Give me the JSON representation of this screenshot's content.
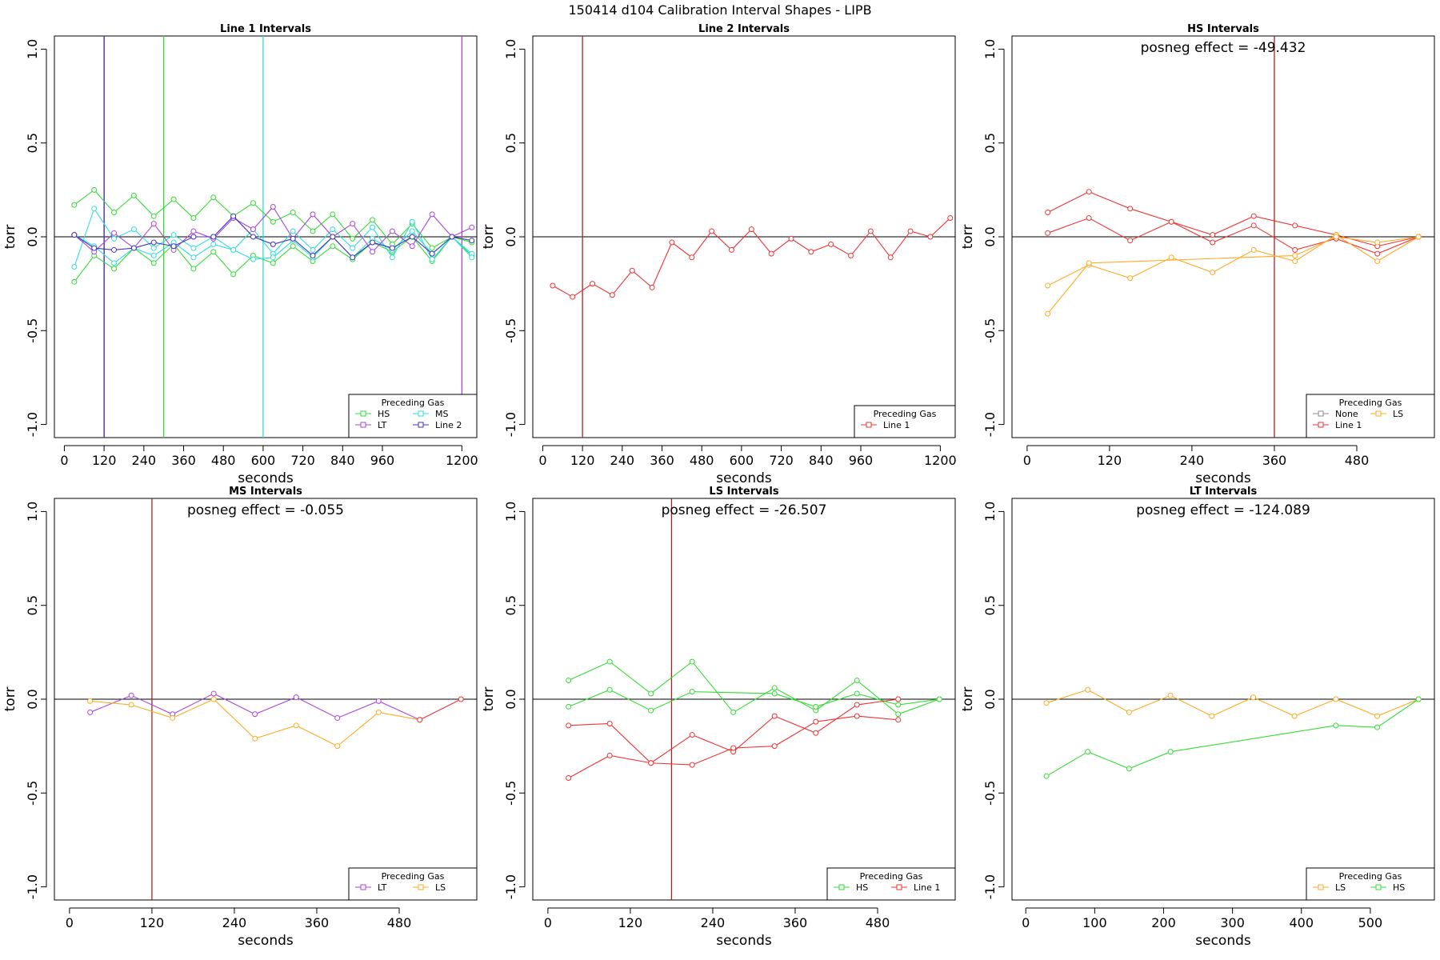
{
  "figure_title": "150414   d104   Calibration Interval Shapes - LIPB",
  "colors": {
    "HS": "#33dd33",
    "MS": "#33dddd",
    "LT": "#aa44dd",
    "Line 2": "#4433bb",
    "Line 1": "#ee3333",
    "LS": "#ffaa22",
    "None": "#888888",
    "zero_line": "#000000",
    "box": "#000000"
  },
  "chart_data": [
    {
      "type": "line",
      "title": "Line 1 Intervals",
      "xlabel": "seconds",
      "ylabel": "torr",
      "xlim": [
        -30,
        1245
      ],
      "ylim": [
        -1.07,
        1.07
      ],
      "xticks": [
        0,
        120,
        240,
        360,
        480,
        600,
        720,
        840,
        960,
        1200
      ],
      "yticks": [
        -1.0,
        -0.5,
        0.0,
        0.5,
        1.0
      ],
      "ytick_labels": [
        "-1.0",
        "-0.5",
        "0.0",
        "0.5",
        "1.0"
      ],
      "zero_line": true,
      "vlines": [
        {
          "x": 120,
          "color": "LT"
        },
        {
          "x": 120,
          "color": "Line 2"
        },
        {
          "x": 300,
          "color": "HS"
        },
        {
          "x": 600,
          "color": "MS"
        },
        {
          "x": 1200,
          "color": "LT"
        }
      ],
      "annotation": "",
      "legend": {
        "title": "Preceding Gas",
        "position": "bottom-right",
        "columns": 2,
        "entries": [
          "HS",
          "MS",
          "LT",
          "Line 2"
        ]
      },
      "series": [
        {
          "color": "HS",
          "x": [
            30,
            90,
            150,
            210,
            270,
            330,
            390,
            450,
            510,
            570,
            630,
            690,
            750,
            810,
            870,
            930,
            990,
            1050,
            1110,
            1170,
            1230
          ],
          "y": [
            0.17,
            0.25,
            0.13,
            0.22,
            0.11,
            0.2,
            0.1,
            0.21,
            0.11,
            0.18,
            0.08,
            0.13,
            0.03,
            0.12,
            -0.01,
            0.09,
            -0.04,
            0.07,
            -0.06,
            0.0,
            -0.1
          ]
        },
        {
          "color": "HS",
          "x": [
            30,
            90,
            150,
            210,
            270,
            330,
            390,
            450,
            510,
            570,
            630,
            690,
            750,
            810,
            870,
            930,
            990,
            1050,
            1110,
            1170,
            1230
          ],
          "y": [
            -0.24,
            -0.1,
            -0.17,
            -0.06,
            -0.14,
            -0.04,
            -0.17,
            -0.08,
            -0.2,
            -0.1,
            -0.14,
            -0.05,
            -0.13,
            -0.05,
            -0.12,
            -0.03,
            -0.08,
            0.0,
            -0.13,
            0.0,
            -0.03
          ]
        },
        {
          "color": "MS",
          "x": [
            30,
            90,
            150,
            210,
            270,
            330,
            390,
            450,
            510,
            570,
            630,
            690,
            750,
            810,
            870,
            930,
            990,
            1050,
            1110,
            1170,
            1230
          ],
          "y": [
            -0.16,
            0.15,
            -0.01,
            0.04,
            -0.06,
            0.01,
            -0.06,
            0.0,
            -0.07,
            0.04,
            -0.09,
            0.03,
            -0.07,
            0.04,
            -0.06,
            0.05,
            -0.11,
            0.08,
            -0.12,
            0.0,
            -0.09
          ]
        },
        {
          "color": "MS",
          "x": [
            30,
            90,
            150,
            210,
            270,
            330,
            390,
            450,
            510,
            570,
            630,
            690,
            750,
            810,
            870,
            930,
            990,
            1050,
            1110,
            1170,
            1230
          ],
          "y": [
            0.01,
            -0.05,
            -0.14,
            -0.06,
            -0.1,
            -0.03,
            -0.11,
            -0.04,
            -0.07,
            -0.12,
            -0.11,
            -0.02,
            -0.11,
            0.0,
            -0.11,
            -0.01,
            -0.07,
            0.03,
            -0.09,
            0.0,
            -0.11
          ]
        },
        {
          "color": "LT",
          "x": [
            30,
            90,
            150,
            210,
            270,
            330,
            390,
            450,
            510,
            570,
            630,
            690,
            750,
            810,
            870,
            930,
            990,
            1050,
            1110,
            1170,
            1230
          ],
          "y": [
            0.01,
            -0.08,
            0.02,
            -0.06,
            0.07,
            -0.07,
            0.03,
            -0.01,
            0.1,
            0.04,
            0.16,
            -0.01,
            0.12,
            0.0,
            0.07,
            -0.08,
            0.03,
            -0.05,
            0.12,
            0.0,
            0.05
          ]
        },
        {
          "color": "Line 2",
          "x": [
            30,
            90,
            150,
            210,
            270,
            330,
            390,
            450,
            510,
            570,
            630,
            690,
            750,
            810,
            870,
            930,
            990,
            1050,
            1110,
            1170,
            1230
          ],
          "y": [
            0.01,
            -0.06,
            -0.07,
            -0.06,
            -0.03,
            -0.05,
            0.0,
            0.0,
            0.11,
            0.0,
            -0.04,
            -0.01,
            -0.1,
            0.0,
            -0.11,
            -0.03,
            -0.06,
            0.0,
            -0.09,
            0.0,
            -0.02
          ]
        }
      ]
    },
    {
      "type": "line",
      "title": "Line 2 Intervals",
      "xlabel": "seconds",
      "ylabel": "torr",
      "xlim": [
        -30,
        1245
      ],
      "ylim": [
        -1.07,
        1.07
      ],
      "xticks": [
        0,
        120,
        240,
        360,
        480,
        600,
        720,
        840,
        960,
        1200
      ],
      "yticks": [
        -1.0,
        -0.5,
        0.0,
        0.5,
        1.0
      ],
      "ytick_labels": [
        "-1.0",
        "-0.5",
        "0.0",
        "0.5",
        "1.0"
      ],
      "zero_line": true,
      "vlines": [
        {
          "x": 120,
          "color": "#aa2222"
        }
      ],
      "annotation": "",
      "legend": {
        "title": "Preceding Gas",
        "position": "bottom-right",
        "columns": 1,
        "entries": [
          "Line 1"
        ]
      },
      "series": [
        {
          "color": "Line 1",
          "x": [
            30,
            90,
            150,
            210,
            270,
            330,
            390,
            450,
            510,
            570,
            630,
            690,
            750,
            810,
            870,
            930,
            990,
            1050,
            1110,
            1170,
            1230
          ],
          "y": [
            -0.26,
            -0.32,
            -0.25,
            -0.31,
            -0.18,
            -0.27,
            -0.03,
            -0.11,
            0.03,
            -0.07,
            0.04,
            -0.09,
            -0.01,
            -0.08,
            -0.04,
            -0.1,
            0.03,
            -0.11,
            0.03,
            0.0,
            0.1
          ]
        }
      ]
    },
    {
      "type": "line",
      "title": "HS Intervals",
      "xlabel": "seconds",
      "ylabel": "torr",
      "xlim": [
        -22,
        593
      ],
      "ylim": [
        -1.07,
        1.07
      ],
      "xticks": [
        0,
        120,
        240,
        360,
        480
      ],
      "yticks": [
        -1.0,
        -0.5,
        0.0,
        0.5,
        1.0
      ],
      "ytick_labels": [
        "-1.0",
        "-0.5",
        "0.0",
        "0.5",
        "1.0"
      ],
      "zero_line": true,
      "vlines": [
        {
          "x": 360,
          "color": "#aa2222"
        }
      ],
      "annotation": "posneg effect = -49.432",
      "legend": {
        "title": "Preceding Gas",
        "position": "bottom-right",
        "columns": 2,
        "entries": [
          "None",
          "LS",
          "Line 1"
        ]
      },
      "series": [
        {
          "color": "Line 1",
          "x": [
            30,
            90,
            150,
            210,
            270,
            330,
            390,
            450,
            510,
            570
          ],
          "y": [
            0.13,
            0.24,
            0.15,
            0.08,
            0.01,
            0.11,
            0.06,
            0.01,
            -0.05,
            0.0
          ]
        },
        {
          "color": "Line 1",
          "x": [
            30,
            90,
            150,
            210,
            270,
            330,
            390,
            450,
            510,
            570
          ],
          "y": [
            0.02,
            0.1,
            -0.02,
            0.08,
            -0.03,
            0.06,
            -0.07,
            -0.01,
            -0.09,
            0.0
          ]
        },
        {
          "color": "LS",
          "x": [
            30,
            90,
            150,
            210,
            270,
            330,
            390,
            450,
            510,
            570
          ],
          "y": [
            -0.26,
            -0.15,
            -0.22,
            -0.11,
            -0.19,
            -0.07,
            -0.13,
            0.01,
            -0.13,
            0.0
          ]
        },
        {
          "color": "LS",
          "x": [
            30,
            90,
            390,
            450,
            510,
            570
          ],
          "y": [
            -0.41,
            -0.14,
            -0.1,
            0.0,
            -0.03,
            0.0
          ]
        }
      ]
    },
    {
      "type": "line",
      "title": "MS Intervals",
      "xlabel": "seconds",
      "ylabel": "torr",
      "xlim": [
        -22,
        593
      ],
      "ylim": [
        -1.07,
        1.07
      ],
      "xticks": [
        0,
        120,
        240,
        360,
        480
      ],
      "yticks": [
        -1.0,
        -0.5,
        0.0,
        0.5,
        1.0
      ],
      "ytick_labels": [
        "-1.0",
        "-0.5",
        "0.0",
        "0.5",
        "1.0"
      ],
      "zero_line": true,
      "vlines": [
        {
          "x": 120,
          "color": "#aa2222"
        }
      ],
      "annotation": "posneg effect = -0.055",
      "legend": {
        "title": "Preceding Gas",
        "position": "bottom-right",
        "columns": 2,
        "entries": [
          "LT",
          "LS"
        ]
      },
      "series": [
        {
          "color": "LT",
          "x": [
            30,
            90,
            150,
            210,
            270,
            330,
            390,
            450,
            510
          ],
          "y": [
            -0.07,
            0.02,
            -0.08,
            0.03,
            -0.08,
            0.01,
            -0.1,
            -0.01,
            -0.11
          ]
        },
        {
          "color": "LS",
          "x": [
            30,
            90,
            150,
            210,
            270,
            330,
            390,
            450,
            510
          ],
          "y": [
            -0.01,
            -0.03,
            -0.1,
            0.0,
            -0.21,
            -0.14,
            -0.25,
            -0.07,
            -0.11
          ]
        },
        {
          "color": "Line 1",
          "x": [
            510,
            570
          ],
          "y": [
            -0.11,
            0.0
          ]
        }
      ]
    },
    {
      "type": "line",
      "title": "LS Intervals",
      "xlabel": "seconds",
      "ylabel": "torr",
      "xlim": [
        -22,
        593
      ],
      "ylim": [
        -1.07,
        1.07
      ],
      "xticks": [
        0,
        120,
        240,
        360,
        480
      ],
      "yticks": [
        -1.0,
        -0.5,
        0.0,
        0.5,
        1.0
      ],
      "ytick_labels": [
        "-1.0",
        "-0.5",
        "0.0",
        "0.5",
        "1.0"
      ],
      "zero_line": true,
      "vlines": [
        {
          "x": 180,
          "color": "#aa2222"
        }
      ],
      "annotation": "posneg effect = -26.507",
      "legend": {
        "title": "Preceding Gas",
        "position": "bottom-right",
        "columns": 2,
        "entries": [
          "HS",
          "Line 1"
        ]
      },
      "series": [
        {
          "color": "HS",
          "x": [
            30,
            90,
            150,
            210,
            270,
            330,
            390,
            450,
            510,
            570
          ],
          "y": [
            0.1,
            0.2,
            0.03,
            0.2,
            -0.07,
            0.06,
            -0.06,
            0.1,
            -0.08,
            0.0
          ]
        },
        {
          "color": "HS",
          "x": [
            30,
            90,
            150,
            210,
            330,
            390,
            450,
            510,
            570
          ],
          "y": [
            -0.04,
            0.05,
            -0.06,
            0.04,
            0.03,
            -0.04,
            0.03,
            -0.03,
            0.0
          ]
        },
        {
          "color": "Line 1",
          "x": [
            30,
            90,
            150,
            210,
            270,
            330,
            390,
            450,
            510
          ],
          "y": [
            -0.14,
            -0.13,
            -0.34,
            -0.19,
            -0.28,
            -0.09,
            -0.18,
            -0.03,
            0.0
          ]
        },
        {
          "color": "Line 1",
          "x": [
            30,
            90,
            150,
            210,
            270,
            330,
            390,
            450,
            510
          ],
          "y": [
            -0.42,
            -0.3,
            -0.34,
            -0.35,
            -0.26,
            -0.25,
            -0.12,
            -0.09,
            -0.11
          ]
        }
      ]
    },
    {
      "type": "line",
      "title": "LT Intervals",
      "xlabel": "seconds",
      "ylabel": "torr",
      "xlim": [
        -20,
        593
      ],
      "ylim": [
        -1.07,
        1.07
      ],
      "xticks": [
        0,
        100,
        200,
        300,
        400,
        500
      ],
      "yticks": [
        -1.0,
        -0.5,
        0.0,
        0.5,
        1.0
      ],
      "ytick_labels": [
        "-1.0",
        "-0.5",
        "0.0",
        "0.5",
        "1.0"
      ],
      "zero_line": true,
      "vlines": [],
      "annotation": "posneg effect = -124.089",
      "legend": {
        "title": "Preceding Gas",
        "position": "bottom-right",
        "columns": 2,
        "entries": [
          "LS",
          "HS"
        ]
      },
      "series": [
        {
          "color": "LS",
          "x": [
            30,
            90,
            150,
            210,
            270,
            330,
            390,
            450,
            510,
            570
          ],
          "y": [
            -0.02,
            0.05,
            -0.07,
            0.02,
            -0.09,
            0.01,
            -0.09,
            0.0,
            -0.09,
            0.0
          ]
        },
        {
          "color": "HS",
          "x": [
            30,
            90,
            150,
            210,
            450,
            510,
            570
          ],
          "y": [
            -0.41,
            -0.28,
            -0.37,
            -0.28,
            -0.14,
            -0.15,
            0.0
          ]
        }
      ]
    }
  ]
}
